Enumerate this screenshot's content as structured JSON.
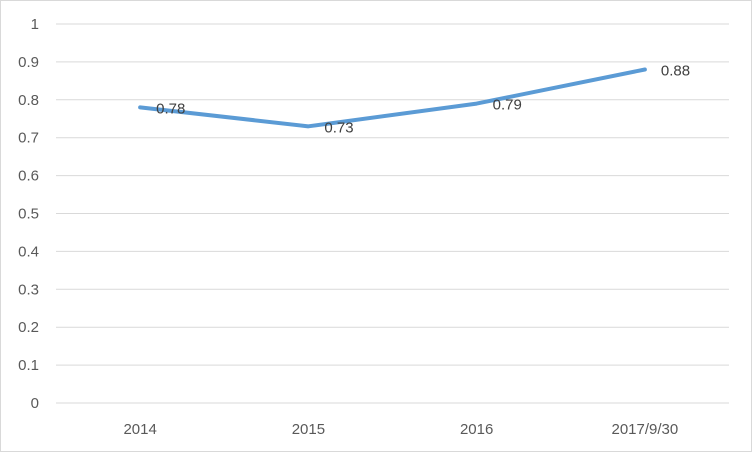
{
  "chart_data": {
    "type": "line",
    "categories": [
      "2014",
      "2015",
      "2016",
      "2017/9/30"
    ],
    "series": [
      {
        "values": [
          0.78,
          0.73,
          0.79,
          0.88
        ],
        "color": "#5b9bd5"
      }
    ],
    "data_labels": [
      "0.78",
      "0.73",
      "0.79",
      "0.88"
    ],
    "ylim": [
      0,
      1
    ],
    "yticks": [
      "0",
      "0.1",
      "0.2",
      "0.3",
      "0.4",
      "0.5",
      "0.6",
      "0.7",
      "0.8",
      "0.9",
      "1"
    ],
    "grid": true,
    "legend": "none",
    "title": "",
    "xlabel": "",
    "ylabel": ""
  }
}
